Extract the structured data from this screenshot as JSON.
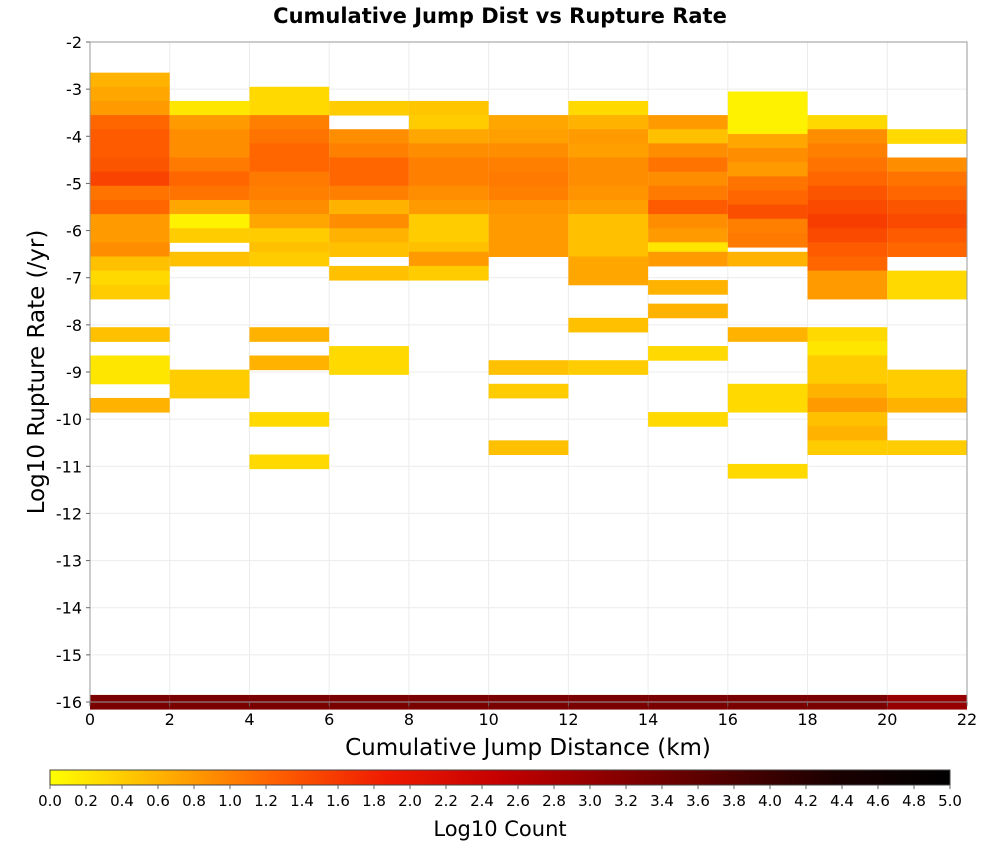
{
  "chart_data": {
    "type": "heatmap",
    "title": "Cumulative Jump Dist vs Rupture Rate",
    "xlabel": "Cumulative Jump Distance (km)",
    "ylabel": "Log10 Rupture Rate (/yr)",
    "xlim": [
      0,
      22
    ],
    "ylim": [
      -16,
      -2
    ],
    "x_ticks": [
      "0",
      "2",
      "4",
      "6",
      "8",
      "10",
      "12",
      "14",
      "16",
      "18",
      "20",
      "22"
    ],
    "y_ticks": [
      "-2",
      "-3",
      "-4",
      "-5",
      "-6",
      "-7",
      "-8",
      "-9",
      "-10",
      "-11",
      "-12",
      "-13",
      "-14",
      "-15",
      "-16"
    ],
    "grid": true,
    "x_bin_width_km": 2,
    "y_bin_height": 0.3,
    "colorbar": {
      "label": "Log10 Count",
      "range": [
        0,
        5
      ],
      "colors": [
        "#ffff00",
        "#ffb000",
        "#ff6000",
        "#ee1a00",
        "#c40000",
        "#8a0000",
        "#500000",
        "#1a0000",
        "#000000"
      ],
      "ticks": [
        "0.0",
        "0.2",
        "0.4",
        "0.6",
        "0.8",
        "1.0",
        "1.2",
        "1.4",
        "1.6",
        "1.8",
        "2.0",
        "2.2",
        "2.4",
        "2.6",
        "2.8",
        "3.0",
        "3.2",
        "3.4",
        "3.6",
        "3.8",
        "4.0",
        "4.2",
        "4.4",
        "4.6",
        "4.8",
        "5.0"
      ]
    },
    "columns": [
      {
        "x": [
          0,
          2
        ],
        "cells": [
          [
            -2.8,
            0.6
          ],
          [
            -3.1,
            0.7
          ],
          [
            -3.4,
            0.8
          ],
          [
            -3.7,
            1.2
          ],
          [
            -4.0,
            1.3
          ],
          [
            -4.3,
            1.3
          ],
          [
            -4.6,
            1.35
          ],
          [
            -4.9,
            1.5
          ],
          [
            -5.2,
            1.1
          ],
          [
            -5.5,
            1.2
          ],
          [
            -5.8,
            0.8
          ],
          [
            -6.1,
            0.8
          ],
          [
            -6.4,
            0.9
          ],
          [
            -6.7,
            0.5
          ],
          [
            -7.0,
            0.3
          ],
          [
            -7.3,
            0.4
          ],
          [
            -8.2,
            0.5
          ],
          [
            -8.8,
            0.2
          ],
          [
            -9.1,
            0.2
          ],
          [
            -9.7,
            0.6
          ],
          [
            -16.0,
            3.3
          ]
        ]
      },
      {
        "x": [
          2,
          4
        ],
        "cells": [
          [
            -3.4,
            0.2
          ],
          [
            -3.7,
            0.8
          ],
          [
            -4.0,
            0.9
          ],
          [
            -4.3,
            0.9
          ],
          [
            -4.6,
            1.05
          ],
          [
            -4.9,
            1.2
          ],
          [
            -5.2,
            1.1
          ],
          [
            -5.5,
            0.7
          ],
          [
            -5.8,
            0.1
          ],
          [
            -6.1,
            0.4
          ],
          [
            -6.6,
            0.5
          ],
          [
            -9.1,
            0.4
          ],
          [
            -9.4,
            0.4
          ],
          [
            -16.0,
            3.3
          ]
        ]
      },
      {
        "x": [
          4,
          6
        ],
        "cells": [
          [
            -3.1,
            0.3
          ],
          [
            -3.4,
            0.3
          ],
          [
            -3.7,
            1.0
          ],
          [
            -4.0,
            1.1
          ],
          [
            -4.3,
            1.2
          ],
          [
            -4.6,
            1.2
          ],
          [
            -4.9,
            1.05
          ],
          [
            -5.2,
            1.0
          ],
          [
            -5.5,
            0.9
          ],
          [
            -5.8,
            0.7
          ],
          [
            -6.1,
            0.4
          ],
          [
            -6.4,
            0.5
          ],
          [
            -6.6,
            0.4
          ],
          [
            -8.2,
            0.6
          ],
          [
            -8.8,
            0.6
          ],
          [
            -10.0,
            0.3
          ],
          [
            -10.9,
            0.3
          ],
          [
            -16.0,
            3.3
          ]
        ]
      },
      {
        "x": [
          6,
          8
        ],
        "cells": [
          [
            -3.4,
            0.4
          ],
          [
            -4.0,
            0.9
          ],
          [
            -4.3,
            1.0
          ],
          [
            -4.6,
            1.2
          ],
          [
            -4.9,
            1.2
          ],
          [
            -5.2,
            1.0
          ],
          [
            -5.5,
            0.6
          ],
          [
            -5.8,
            0.9
          ],
          [
            -6.1,
            0.6
          ],
          [
            -6.4,
            0.5
          ],
          [
            -6.9,
            0.5
          ],
          [
            -8.6,
            0.3
          ],
          [
            -8.9,
            0.3
          ],
          [
            -16.0,
            3.3
          ]
        ]
      },
      {
        "x": [
          8,
          10
        ],
        "cells": [
          [
            -3.4,
            0.45
          ],
          [
            -3.7,
            0.4
          ],
          [
            -4.0,
            0.7
          ],
          [
            -4.3,
            0.9
          ],
          [
            -4.6,
            1.0
          ],
          [
            -4.9,
            1.0
          ],
          [
            -5.2,
            0.9
          ],
          [
            -5.5,
            0.8
          ],
          [
            -5.8,
            0.4
          ],
          [
            -6.1,
            0.4
          ],
          [
            -6.4,
            0.5
          ],
          [
            -6.6,
            0.8
          ],
          [
            -6.9,
            0.4
          ],
          [
            -16.0,
            3.3
          ]
        ]
      },
      {
        "x": [
          10,
          12
        ],
        "cells": [
          [
            -3.7,
            0.7
          ],
          [
            -4.0,
            0.75
          ],
          [
            -4.3,
            0.9
          ],
          [
            -4.6,
            1.0
          ],
          [
            -4.9,
            1.05
          ],
          [
            -5.2,
            1.0
          ],
          [
            -5.5,
            0.85
          ],
          [
            -5.8,
            0.8
          ],
          [
            -6.1,
            0.8
          ],
          [
            -6.4,
            0.8
          ],
          [
            -8.9,
            0.5
          ],
          [
            -9.4,
            0.4
          ],
          [
            -10.6,
            0.5
          ],
          [
            -16.0,
            3.3
          ]
        ]
      },
      {
        "x": [
          12,
          14
        ],
        "cells": [
          [
            -3.4,
            0.3
          ],
          [
            -3.7,
            0.6
          ],
          [
            -4.0,
            0.8
          ],
          [
            -4.3,
            0.75
          ],
          [
            -4.6,
            0.9
          ],
          [
            -4.9,
            0.9
          ],
          [
            -5.2,
            0.85
          ],
          [
            -5.5,
            0.75
          ],
          [
            -5.8,
            0.5
          ],
          [
            -6.1,
            0.5
          ],
          [
            -6.4,
            0.5
          ],
          [
            -6.7,
            0.7
          ],
          [
            -7.0,
            0.7
          ],
          [
            -8.0,
            0.5
          ],
          [
            -8.9,
            0.4
          ],
          [
            -16.0,
            3.3
          ]
        ]
      },
      {
        "x": [
          14,
          16
        ],
        "cells": [
          [
            -3.7,
            0.8
          ],
          [
            -4.0,
            0.5
          ],
          [
            -4.3,
            0.9
          ],
          [
            -4.6,
            1.1
          ],
          [
            -4.9,
            0.9
          ],
          [
            -5.2,
            1.05
          ],
          [
            -5.5,
            1.3
          ],
          [
            -5.8,
            0.9
          ],
          [
            -6.1,
            0.8
          ],
          [
            -6.4,
            0.2
          ],
          [
            -6.6,
            0.8
          ],
          [
            -7.2,
            0.6
          ],
          [
            -7.7,
            0.6
          ],
          [
            -8.6,
            0.3
          ],
          [
            -10.0,
            0.3
          ],
          [
            -16.0,
            3.3
          ]
        ]
      },
      {
        "x": [
          16,
          18
        ],
        "cells": [
          [
            -3.2,
            0.1
          ],
          [
            -3.5,
            0.1
          ],
          [
            -3.8,
            0.1
          ],
          [
            -4.1,
            0.7
          ],
          [
            -4.4,
            0.9
          ],
          [
            -4.7,
            0.8
          ],
          [
            -5.0,
            1.1
          ],
          [
            -5.3,
            1.2
          ],
          [
            -5.6,
            1.4
          ],
          [
            -5.9,
            1.0
          ],
          [
            -6.2,
            1.05
          ],
          [
            -6.6,
            0.6
          ],
          [
            -8.2,
            0.6
          ],
          [
            -9.4,
            0.3
          ],
          [
            -9.7,
            0.3
          ],
          [
            -11.1,
            0.3
          ],
          [
            -16.0,
            3.3
          ]
        ]
      },
      {
        "x": [
          18,
          20
        ],
        "cells": [
          [
            -3.7,
            0.3
          ],
          [
            -4.0,
            0.9
          ],
          [
            -4.3,
            1.0
          ],
          [
            -4.6,
            1.1
          ],
          [
            -4.9,
            1.2
          ],
          [
            -5.2,
            1.35
          ],
          [
            -5.5,
            1.45
          ],
          [
            -5.8,
            1.55
          ],
          [
            -6.1,
            1.45
          ],
          [
            -6.4,
            1.3
          ],
          [
            -6.7,
            1.2
          ],
          [
            -7.0,
            0.8
          ],
          [
            -7.3,
            0.8
          ],
          [
            -8.2,
            0.3
          ],
          [
            -8.5,
            0.2
          ],
          [
            -8.8,
            0.4
          ],
          [
            -9.1,
            0.4
          ],
          [
            -9.4,
            0.6
          ],
          [
            -9.7,
            0.8
          ],
          [
            -10.0,
            0.5
          ],
          [
            -10.3,
            0.6
          ],
          [
            -10.6,
            0.4
          ],
          [
            -16.0,
            3.3
          ]
        ]
      },
      {
        "x": [
          20,
          22
        ],
        "cells": [
          [
            -4.0,
            0.3
          ],
          [
            -4.6,
            0.9
          ],
          [
            -4.9,
            1.1
          ],
          [
            -5.2,
            1.2
          ],
          [
            -5.5,
            1.35
          ],
          [
            -5.8,
            1.45
          ],
          [
            -6.1,
            1.3
          ],
          [
            -6.4,
            1.2
          ],
          [
            -7.0,
            0.3
          ],
          [
            -7.3,
            0.3
          ],
          [
            -9.1,
            0.4
          ],
          [
            -9.4,
            0.4
          ],
          [
            -9.7,
            0.6
          ],
          [
            -10.6,
            0.4
          ],
          [
            -16.0,
            3.0
          ]
        ]
      }
    ]
  }
}
